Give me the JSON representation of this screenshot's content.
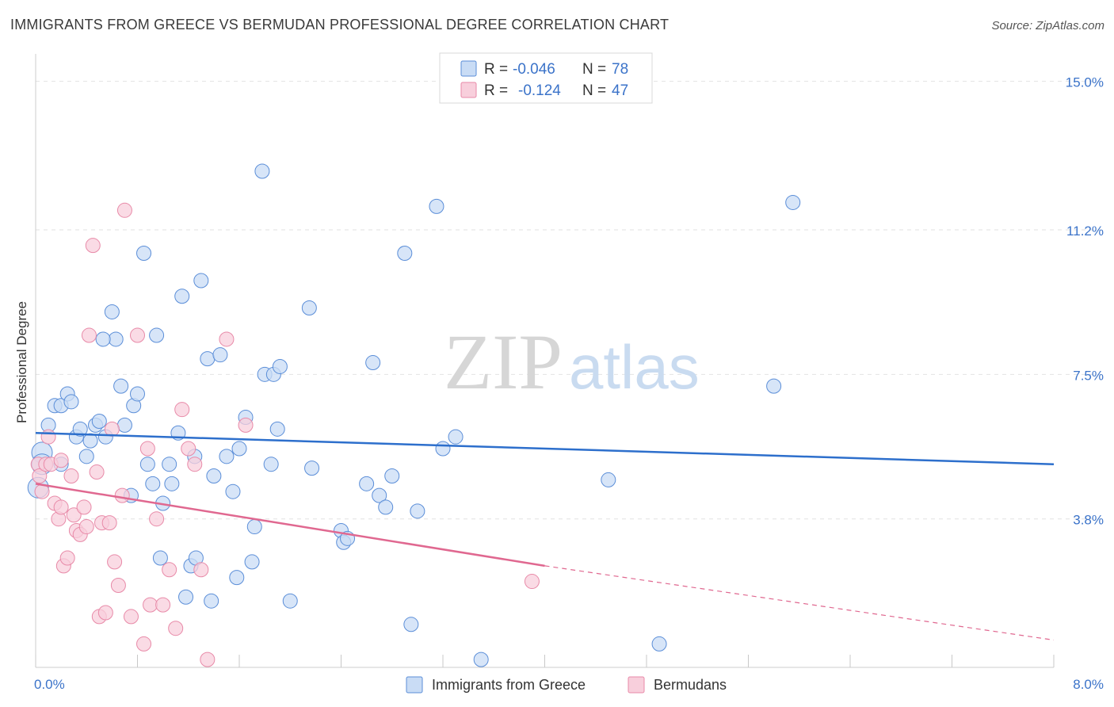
{
  "header": {
    "title": "IMMIGRANTS FROM GREECE VS BERMUDAN PROFESSIONAL DEGREE CORRELATION CHART",
    "source": "Source: ZipAtlas.com"
  },
  "watermark": {
    "zip": "ZIP",
    "atlas": "atlas"
  },
  "colors": {
    "blue": "#5b8ed8",
    "blue_fill": "#c9dcf5",
    "blue_line": "#2d6fcc",
    "pink": "#e88aa8",
    "pink_fill": "#f8cfdc",
    "pink_line": "#e06890",
    "value_text": "#3b73c9"
  },
  "stats": {
    "r_label": "R =",
    "n_label": "N =",
    "rows": [
      {
        "r": "-0.046",
        "n": "78"
      },
      {
        "r": "-0.124",
        "n": "47"
      }
    ]
  },
  "chart_data": {
    "type": "scatter",
    "ylabel": "Professional Degree",
    "xlim": [
      0,
      8
    ],
    "ylim": [
      0,
      15.5
    ],
    "x_ticks": [
      "0.0%",
      "8.0%"
    ],
    "y_ticks": [
      {
        "value": 3.8,
        "label": "3.8%"
      },
      {
        "value": 7.5,
        "label": "7.5%"
      },
      {
        "value": 11.2,
        "label": "11.2%"
      },
      {
        "value": 15.0,
        "label": "15.0%"
      }
    ],
    "grid": true,
    "legend_position": "bottom",
    "series": [
      {
        "name": "Immigrants from Greece",
        "color": "blue",
        "trend": {
          "x0": 0.0,
          "y0": 6.0,
          "x1": 8.0,
          "y1": 5.2
        },
        "points": [
          [
            0.02,
            4.6
          ],
          [
            0.05,
            5.5
          ],
          [
            0.05,
            5.2
          ],
          [
            0.1,
            6.2
          ],
          [
            0.15,
            6.7
          ],
          [
            0.2,
            5.2
          ],
          [
            0.2,
            6.7
          ],
          [
            0.25,
            7.0
          ],
          [
            0.28,
            6.8
          ],
          [
            0.32,
            5.9
          ],
          [
            0.35,
            6.1
          ],
          [
            0.4,
            5.4
          ],
          [
            0.43,
            5.8
          ],
          [
            0.47,
            6.2
          ],
          [
            0.5,
            6.3
          ],
          [
            0.55,
            5.9
          ],
          [
            0.6,
            9.1
          ],
          [
            0.63,
            8.4
          ],
          [
            0.53,
            8.4
          ],
          [
            0.67,
            7.2
          ],
          [
            0.7,
            6.2
          ],
          [
            0.75,
            4.4
          ],
          [
            0.77,
            6.7
          ],
          [
            0.8,
            7.0
          ],
          [
            0.85,
            10.6
          ],
          [
            0.88,
            5.2
          ],
          [
            0.92,
            4.7
          ],
          [
            0.95,
            8.5
          ],
          [
            0.98,
            2.8
          ],
          [
            1.0,
            4.2
          ],
          [
            1.05,
            5.2
          ],
          [
            1.07,
            4.7
          ],
          [
            1.12,
            6.0
          ],
          [
            1.15,
            9.5
          ],
          [
            1.18,
            1.8
          ],
          [
            1.22,
            2.6
          ],
          [
            1.25,
            5.4
          ],
          [
            1.26,
            2.8
          ],
          [
            1.3,
            9.9
          ],
          [
            1.35,
            7.9
          ],
          [
            1.38,
            1.7
          ],
          [
            1.4,
            4.9
          ],
          [
            1.45,
            8.0
          ],
          [
            1.5,
            5.4
          ],
          [
            1.55,
            4.5
          ],
          [
            1.58,
            2.3
          ],
          [
            1.6,
            5.6
          ],
          [
            1.65,
            6.4
          ],
          [
            1.7,
            2.7
          ],
          [
            1.72,
            3.6
          ],
          [
            1.78,
            12.7
          ],
          [
            1.8,
            7.5
          ],
          [
            1.85,
            5.2
          ],
          [
            1.87,
            7.5
          ],
          [
            1.9,
            6.1
          ],
          [
            1.92,
            7.7
          ],
          [
            2.0,
            1.7
          ],
          [
            2.15,
            9.2
          ],
          [
            2.17,
            5.1
          ],
          [
            2.4,
            3.5
          ],
          [
            2.42,
            3.2
          ],
          [
            2.45,
            3.3
          ],
          [
            2.6,
            4.7
          ],
          [
            2.65,
            7.8
          ],
          [
            2.7,
            4.4
          ],
          [
            2.75,
            4.1
          ],
          [
            2.8,
            4.9
          ],
          [
            2.9,
            10.6
          ],
          [
            2.95,
            1.1
          ],
          [
            3.0,
            4.0
          ],
          [
            3.15,
            11.8
          ],
          [
            3.2,
            5.6
          ],
          [
            3.3,
            5.9
          ],
          [
            3.5,
            0.2
          ],
          [
            4.5,
            4.8
          ],
          [
            4.9,
            0.6
          ],
          [
            5.8,
            7.2
          ],
          [
            5.95,
            11.9
          ]
        ]
      },
      {
        "name": "Bermudans",
        "color": "pink",
        "trend": {
          "x0": 0.0,
          "y0": 4.7,
          "x1": 4.0,
          "y1": 2.6,
          "dash_x1": 8.0,
          "dash_y1": 0.7
        },
        "points": [
          [
            0.02,
            5.2
          ],
          [
            0.03,
            4.9
          ],
          [
            0.05,
            4.5
          ],
          [
            0.08,
            5.2
          ],
          [
            0.1,
            5.9
          ],
          [
            0.12,
            5.2
          ],
          [
            0.15,
            4.2
          ],
          [
            0.18,
            3.8
          ],
          [
            0.2,
            5.3
          ],
          [
            0.2,
            4.1
          ],
          [
            0.22,
            2.6
          ],
          [
            0.25,
            2.8
          ],
          [
            0.28,
            4.9
          ],
          [
            0.3,
            3.9
          ],
          [
            0.32,
            3.5
          ],
          [
            0.35,
            3.4
          ],
          [
            0.38,
            4.1
          ],
          [
            0.4,
            3.6
          ],
          [
            0.42,
            8.5
          ],
          [
            0.45,
            10.8
          ],
          [
            0.48,
            5.0
          ],
          [
            0.5,
            1.3
          ],
          [
            0.52,
            3.7
          ],
          [
            0.55,
            1.4
          ],
          [
            0.58,
            3.7
          ],
          [
            0.6,
            6.1
          ],
          [
            0.62,
            2.7
          ],
          [
            0.65,
            2.1
          ],
          [
            0.68,
            4.4
          ],
          [
            0.7,
            11.7
          ],
          [
            0.75,
            1.3
          ],
          [
            0.8,
            8.5
          ],
          [
            0.85,
            0.6
          ],
          [
            0.88,
            5.6
          ],
          [
            0.9,
            1.6
          ],
          [
            0.95,
            3.8
          ],
          [
            1.0,
            1.6
          ],
          [
            1.05,
            2.5
          ],
          [
            1.1,
            1.0
          ],
          [
            1.15,
            6.6
          ],
          [
            1.2,
            5.6
          ],
          [
            1.25,
            5.2
          ],
          [
            1.3,
            2.5
          ],
          [
            1.35,
            0.2
          ],
          [
            1.5,
            8.4
          ],
          [
            1.65,
            6.2
          ],
          [
            3.9,
            2.2
          ]
        ]
      }
    ]
  }
}
